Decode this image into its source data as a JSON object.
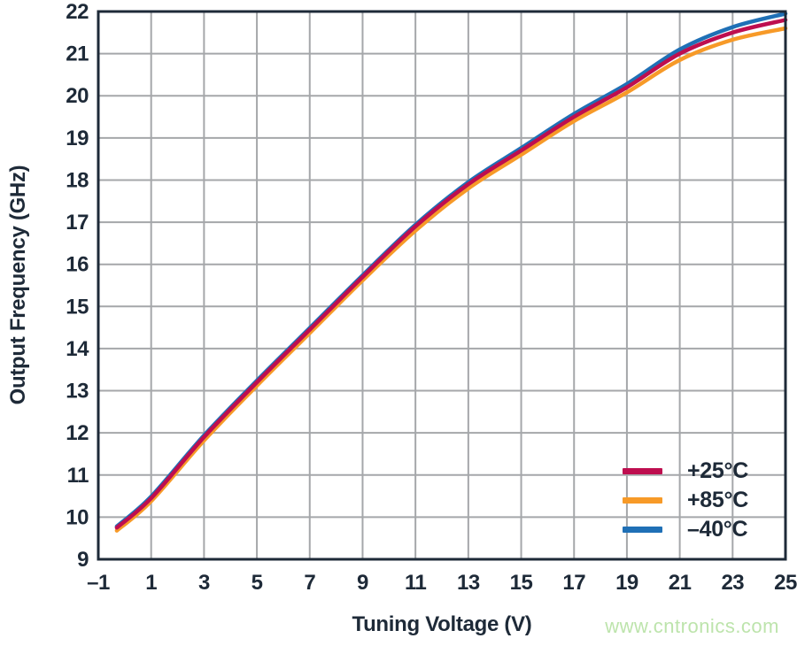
{
  "figure": {
    "watermark": "www.cntronics.com"
  },
  "colors": {
    "axis_text": "#1e2a38",
    "plot_border": "#1e2a38",
    "gridline": "#a5a7aa",
    "watermark": "#bde4ac",
    "series_25c": "#be0e4f",
    "series_85c": "#f79a28",
    "series_m40c": "#1f70b6"
  },
  "chart_data": {
    "type": "line",
    "title": "",
    "xlabel": "Tuning Voltage (V)",
    "ylabel": "Output Frequency (GHz)",
    "xlim": [
      -1,
      25
    ],
    "ylim": [
      9,
      22
    ],
    "grid": true,
    "legend_position": "inside-bottom-right",
    "x_ticks": [
      -1,
      1,
      3,
      5,
      7,
      9,
      11,
      13,
      15,
      17,
      19,
      21,
      23,
      25
    ],
    "x_tick_labels": [
      "–1",
      "1",
      "3",
      "5",
      "7",
      "9",
      "11",
      "13",
      "15",
      "17",
      "19",
      "21",
      "23",
      "25"
    ],
    "y_ticks": [
      9,
      10,
      11,
      12,
      13,
      14,
      15,
      16,
      17,
      18,
      19,
      20,
      21,
      22
    ],
    "y_tick_labels": [
      "9",
      "10",
      "11",
      "12",
      "13",
      "14",
      "15",
      "16",
      "17",
      "18",
      "19",
      "20",
      "21",
      "22"
    ],
    "x": [
      -0.3,
      1,
      3,
      5,
      7,
      9,
      11,
      13,
      15,
      17,
      19,
      21,
      23,
      25
    ],
    "series": [
      {
        "name": "+25°C",
        "color": "#be0e4f",
        "values": [
          9.75,
          10.45,
          11.9,
          13.2,
          14.45,
          15.7,
          16.9,
          17.9,
          18.7,
          19.5,
          20.2,
          21.0,
          21.5,
          21.8
        ]
      },
      {
        "name": "+85°C",
        "color": "#f79a28",
        "values": [
          9.68,
          10.38,
          11.82,
          13.12,
          14.37,
          15.62,
          16.8,
          17.8,
          18.6,
          19.4,
          20.08,
          20.85,
          21.33,
          21.6
        ]
      },
      {
        "name": "–40°C",
        "color": "#1f70b6",
        "values": [
          9.78,
          10.49,
          11.94,
          13.24,
          14.49,
          15.74,
          16.94,
          17.95,
          18.76,
          19.57,
          20.28,
          21.1,
          21.63,
          21.95
        ]
      }
    ]
  }
}
